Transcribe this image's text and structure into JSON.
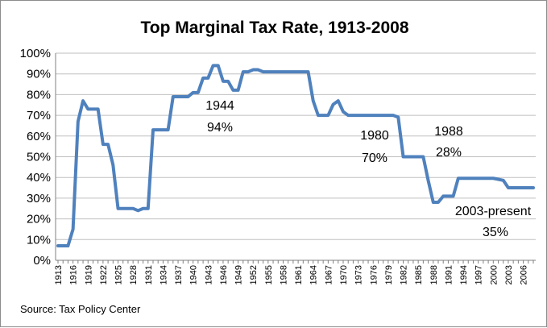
{
  "chart_data": {
    "type": "line",
    "title": "Top Marginal Tax Rate, 1913-2008",
    "source": "Source:  Tax Policy Center",
    "xlabel": "",
    "ylabel": "",
    "xlim": [
      1913,
      2008
    ],
    "ylim": [
      0,
      100
    ],
    "y_ticks": [
      "0%",
      "10%",
      "20%",
      "30%",
      "40%",
      "50%",
      "60%",
      "70%",
      "80%",
      "90%",
      "100%"
    ],
    "x_tick_labels": [
      "1913",
      "1916",
      "1919",
      "1922",
      "1925",
      "1928",
      "1931",
      "1934",
      "1937",
      "1940",
      "1943",
      "1946",
      "1949",
      "1952",
      "1955",
      "1958",
      "1961",
      "1964",
      "1967",
      "1970",
      "1973",
      "1976",
      "1979",
      "1982",
      "1985",
      "1988",
      "1991",
      "1994",
      "1997",
      "2000",
      "2003",
      "2006"
    ],
    "series": [
      {
        "name": "Top Marginal Tax Rate",
        "color": "#4f81bd",
        "x": [
          1913,
          1914,
          1915,
          1916,
          1917,
          1918,
          1919,
          1920,
          1921,
          1922,
          1923,
          1924,
          1925,
          1926,
          1927,
          1928,
          1929,
          1930,
          1931,
          1932,
          1933,
          1934,
          1935,
          1936,
          1937,
          1938,
          1939,
          1940,
          1941,
          1942,
          1943,
          1944,
          1945,
          1946,
          1947,
          1948,
          1949,
          1950,
          1951,
          1952,
          1953,
          1954,
          1955,
          1956,
          1957,
          1958,
          1959,
          1960,
          1961,
          1962,
          1963,
          1964,
          1965,
          1966,
          1967,
          1968,
          1969,
          1970,
          1971,
          1972,
          1973,
          1974,
          1975,
          1976,
          1977,
          1978,
          1979,
          1980,
          1981,
          1982,
          1983,
          1984,
          1985,
          1986,
          1987,
          1988,
          1989,
          1990,
          1991,
          1992,
          1993,
          1994,
          1995,
          1996,
          1997,
          1998,
          1999,
          2000,
          2001,
          2002,
          2003,
          2004,
          2005,
          2006,
          2007,
          2008
        ],
        "values": [
          7,
          7,
          7,
          15,
          67,
          77,
          73,
          73,
          73,
          56,
          56,
          46,
          25,
          25,
          25,
          25,
          24,
          25,
          25,
          63,
          63,
          63,
          63,
          79,
          79,
          79,
          79,
          81,
          81,
          88,
          88,
          94,
          94,
          86.45,
          86.45,
          82.13,
          82.13,
          91,
          91,
          92,
          92,
          91,
          91,
          91,
          91,
          91,
          91,
          91,
          91,
          91,
          91,
          77,
          70,
          70,
          70,
          75.25,
          77,
          71.75,
          70,
          70,
          70,
          70,
          70,
          70,
          70,
          70,
          70,
          70,
          69.13,
          50,
          50,
          50,
          50,
          50,
          38.5,
          28,
          28,
          31,
          31,
          31,
          39.6,
          39.6,
          39.6,
          39.6,
          39.6,
          39.6,
          39.6,
          39.6,
          39.1,
          38.6,
          35,
          35,
          35,
          35,
          35,
          35
        ]
      }
    ],
    "annotations": [
      {
        "line1": "1944",
        "line2": "94%"
      },
      {
        "line1": "1980",
        "line2": "70%"
      },
      {
        "line1": "1988",
        "line2": "28%"
      },
      {
        "line1": "2003-present",
        "line2": "35%"
      }
    ],
    "grid": true,
    "legend": "none"
  }
}
